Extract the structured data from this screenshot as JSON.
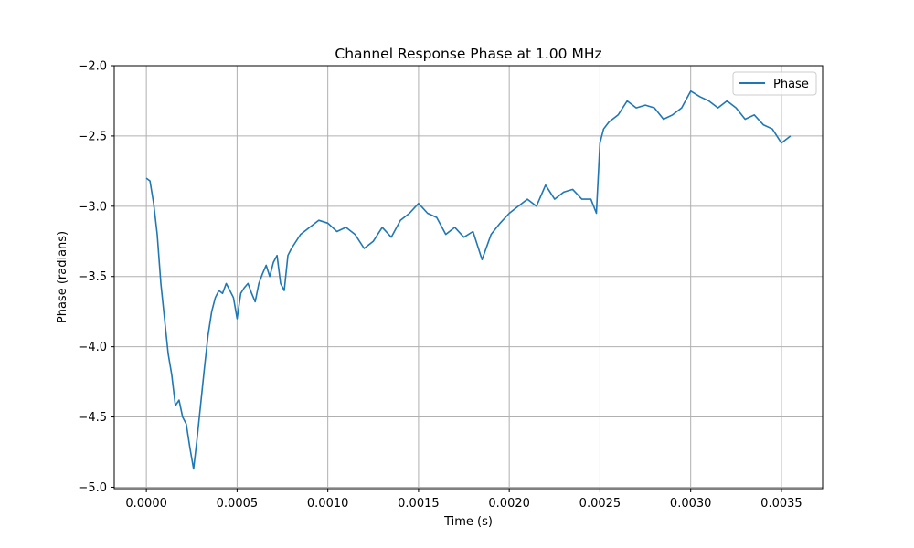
{
  "chart_data": {
    "type": "line",
    "title": "Channel Response Phase at 1.00 MHz",
    "xlabel": "Time (s)",
    "ylabel": "Phase (radians)",
    "xlim": [
      -0.000177,
      0.003727
    ],
    "ylim": [
      -5.01,
      -2.0
    ],
    "x_ticks": [
      0.0,
      0.0005,
      0.001,
      0.0015,
      0.002,
      0.0025,
      0.003,
      0.0035
    ],
    "x_tick_labels": [
      "0.0000",
      "0.0005",
      "0.0010",
      "0.0015",
      "0.0020",
      "0.0025",
      "0.0030",
      "0.0035"
    ],
    "y_ticks": [
      -5.0,
      -4.5,
      -4.0,
      -3.5,
      -3.0,
      -2.5,
      -2.0
    ],
    "y_tick_labels": [
      "−5.0",
      "−4.5",
      "−4.0",
      "−3.5",
      "−3.0",
      "−2.5",
      "−2.0"
    ],
    "grid": true,
    "legend_position": "top-right",
    "series": [
      {
        "name": "Phase",
        "color": "#1f77b4",
        "x": [
          0.0,
          2e-05,
          4e-05,
          6e-05,
          8e-05,
          0.0001,
          0.00012,
          0.00014,
          0.00016,
          0.00018,
          0.0002,
          0.00022,
          0.00024,
          0.00026,
          0.00028,
          0.0003,
          0.00032,
          0.00034,
          0.00036,
          0.00038,
          0.0004,
          0.00042,
          0.00044,
          0.00046,
          0.00048,
          0.0005,
          0.00052,
          0.00054,
          0.00056,
          0.00058,
          0.0006,
          0.00062,
          0.00064,
          0.00066,
          0.00068,
          0.0007,
          0.00072,
          0.00074,
          0.00076,
          0.00078,
          0.0008,
          0.00085,
          0.0009,
          0.00095,
          0.001,
          0.00105,
          0.0011,
          0.00115,
          0.0012,
          0.00125,
          0.0013,
          0.00135,
          0.0014,
          0.00145,
          0.0015,
          0.00155,
          0.0016,
          0.00165,
          0.0017,
          0.00175,
          0.0018,
          0.00185,
          0.0019,
          0.00195,
          0.002,
          0.00205,
          0.0021,
          0.00215,
          0.0022,
          0.00225,
          0.0023,
          0.00235,
          0.0024,
          0.00245,
          0.00248,
          0.0025,
          0.00252,
          0.00255,
          0.0026,
          0.00265,
          0.0027,
          0.00275,
          0.0028,
          0.00285,
          0.0029,
          0.00295,
          0.003,
          0.00305,
          0.0031,
          0.00315,
          0.0032,
          0.00325,
          0.0033,
          0.00335,
          0.0034,
          0.00345,
          0.0035,
          0.00355
        ],
        "y": [
          -2.8,
          -2.82,
          -2.98,
          -3.2,
          -3.55,
          -3.8,
          -4.05,
          -4.2,
          -4.42,
          -4.38,
          -4.5,
          -4.55,
          -4.72,
          -4.87,
          -4.65,
          -4.4,
          -4.15,
          -3.92,
          -3.75,
          -3.65,
          -3.6,
          -3.62,
          -3.55,
          -3.6,
          -3.65,
          -3.8,
          -3.62,
          -3.58,
          -3.55,
          -3.62,
          -3.68,
          -3.55,
          -3.48,
          -3.42,
          -3.5,
          -3.4,
          -3.35,
          -3.55,
          -3.6,
          -3.35,
          -3.3,
          -3.2,
          -3.15,
          -3.1,
          -3.12,
          -3.18,
          -3.15,
          -3.2,
          -3.3,
          -3.25,
          -3.15,
          -3.22,
          -3.1,
          -3.05,
          -2.98,
          -3.05,
          -3.08,
          -3.2,
          -3.15,
          -3.22,
          -3.18,
          -3.38,
          -3.2,
          -3.12,
          -3.05,
          -3.0,
          -2.95,
          -3.0,
          -2.85,
          -2.95,
          -2.9,
          -2.88,
          -2.95,
          -2.95,
          -3.05,
          -2.55,
          -2.45,
          -2.4,
          -2.35,
          -2.25,
          -2.3,
          -2.28,
          -2.3,
          -2.38,
          -2.35,
          -2.3,
          -2.18,
          -2.22,
          -2.25,
          -2.3,
          -2.25,
          -2.3,
          -2.38,
          -2.35,
          -2.42,
          -2.45,
          -2.55,
          -2.5
        ]
      }
    ]
  }
}
